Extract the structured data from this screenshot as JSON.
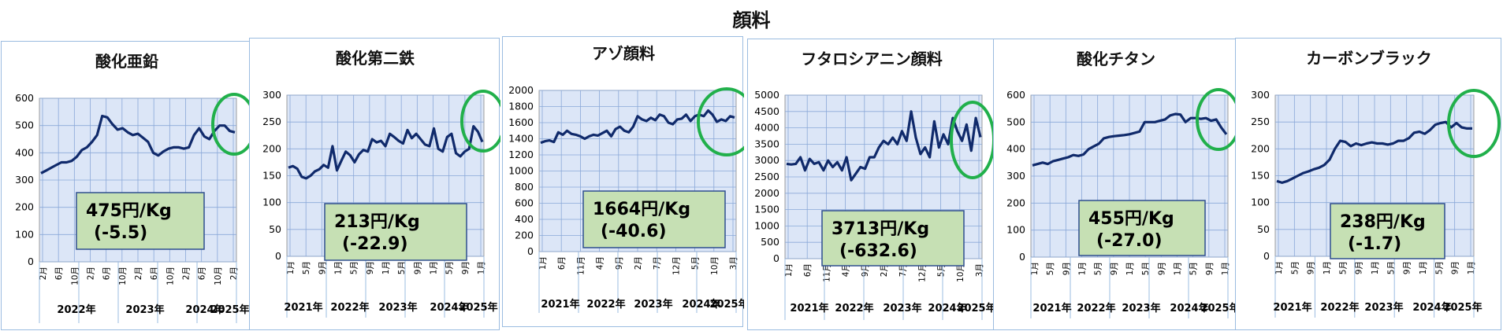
{
  "title": "顔料",
  "chart_data": [
    {
      "type": "line",
      "title": "酸化亜鉛",
      "ylim": [
        0,
        600
      ],
      "yticks": [
        0,
        100,
        200,
        300,
        400,
        500,
        600
      ],
      "xticks": [
        "2月",
        "6月",
        "10月",
        "2月",
        "6月",
        "10月",
        "2月",
        "6月",
        "10月",
        "2月",
        "6月",
        "10月",
        "2月"
      ],
      "years": [
        "2022年",
        "2023年",
        "2024年",
        "2025年"
      ],
      "values": [
        325,
        335,
        345,
        355,
        365,
        365,
        370,
        385,
        410,
        420,
        440,
        465,
        535,
        530,
        505,
        485,
        490,
        475,
        465,
        470,
        455,
        440,
        400,
        390,
        405,
        415,
        420,
        420,
        415,
        420,
        465,
        490,
        460,
        450,
        480,
        500,
        500,
        480,
        475
      ],
      "annotation": {
        "price": "475円/Kg",
        "change": "(-5.5)"
      },
      "line_color": "#102a6b",
      "circle_color": "#21b04b"
    },
    {
      "type": "line",
      "title": "酸化第二鉄",
      "ylim": [
        0,
        300
      ],
      "yticks": [
        0,
        50,
        100,
        150,
        200,
        250,
        300
      ],
      "xticks": [
        "1月",
        "5月",
        "9月",
        "1月",
        "5月",
        "9月",
        "1月",
        "5月",
        "9月",
        "1月",
        "5月",
        "9月",
        "1月"
      ],
      "years": [
        "2021年",
        "2022年",
        "2023年",
        "2024年",
        "2025年"
      ],
      "values": [
        165,
        168,
        163,
        148,
        145,
        150,
        158,
        162,
        170,
        165,
        205,
        160,
        178,
        195,
        188,
        175,
        190,
        198,
        195,
        218,
        212,
        215,
        205,
        228,
        222,
        215,
        210,
        235,
        220,
        228,
        218,
        208,
        205,
        238,
        200,
        195,
        222,
        228,
        192,
        186,
        195,
        200,
        242,
        232,
        213
      ],
      "annotation": {
        "price": "213円/Kg",
        "change": "(-22.9)"
      },
      "line_color": "#102a6b",
      "circle_color": "#21b04b"
    },
    {
      "type": "line",
      "title": "アゾ顔料",
      "ylim": [
        0,
        2000
      ],
      "yticks": [
        0,
        200,
        400,
        600,
        800,
        1000,
        1200,
        1400,
        1600,
        1800,
        2000
      ],
      "xticks": [
        "1月",
        "6月",
        "11月",
        "4月",
        "9月",
        "2月",
        "7月",
        "12月",
        "5月",
        "10月",
        "3月"
      ],
      "years": [
        "2021年",
        "2022年",
        "2023年",
        "2024年",
        "2025年"
      ],
      "values": [
        1350,
        1370,
        1380,
        1360,
        1480,
        1450,
        1500,
        1460,
        1450,
        1430,
        1400,
        1430,
        1450,
        1440,
        1470,
        1500,
        1430,
        1520,
        1550,
        1500,
        1480,
        1550,
        1680,
        1640,
        1620,
        1660,
        1630,
        1700,
        1680,
        1600,
        1580,
        1640,
        1650,
        1700,
        1620,
        1680,
        1700,
        1680,
        1750,
        1700,
        1610,
        1640,
        1620,
        1680,
        1664
      ],
      "annotation": {
        "price": "1664円/Kg",
        "change": "(-40.6)"
      },
      "line_color": "#102a6b",
      "circle_color": "#21b04b"
    },
    {
      "type": "line",
      "title": "フタロシアニン顔料",
      "ylim": [
        0,
        5000
      ],
      "yticks": [
        0,
        500,
        1000,
        1500,
        2000,
        2500,
        3000,
        3500,
        4000,
        4500,
        5000
      ],
      "xticks": [
        "1月",
        "6月",
        "11月",
        "4月",
        "9月",
        "2月",
        "7月",
        "12月",
        "5月",
        "10月",
        "3月"
      ],
      "years": [
        "2021年",
        "2022年",
        "2023年",
        "2024年",
        "2025年"
      ],
      "values": [
        2900,
        2880,
        2900,
        3100,
        2700,
        3050,
        2900,
        2950,
        2700,
        3000,
        2800,
        2950,
        2700,
        3100,
        2400,
        2600,
        2800,
        2750,
        3100,
        3100,
        3400,
        3600,
        3500,
        3700,
        3500,
        3900,
        3600,
        4500,
        3700,
        3200,
        3400,
        3100,
        4200,
        3400,
        3800,
        3500,
        4300,
        3900,
        3600,
        4100,
        3300,
        4300,
        3713
      ],
      "annotation": {
        "price": "3713円/Kg",
        "change": "(-632.6)"
      },
      "line_color": "#102a6b",
      "circle_color": "#21b04b"
    },
    {
      "type": "line",
      "title": "酸化チタン",
      "ylim": [
        0,
        600
      ],
      "yticks": [
        0,
        100,
        200,
        300,
        400,
        500,
        600
      ],
      "xticks": [
        "1月",
        "5月",
        "9月",
        "1月",
        "5月",
        "9月",
        "1月",
        "5月",
        "9月",
        "1月",
        "5月",
        "9月",
        "1月"
      ],
      "years": [
        "2021年",
        "2022年",
        "2023年",
        "2024年",
        "2025年"
      ],
      "values": [
        340,
        345,
        350,
        345,
        355,
        360,
        365,
        370,
        378,
        375,
        380,
        400,
        410,
        420,
        440,
        445,
        448,
        450,
        452,
        455,
        460,
        465,
        500,
        500,
        500,
        505,
        510,
        525,
        530,
        528,
        500,
        515,
        515,
        512,
        515,
        505,
        510,
        480,
        455
      ],
      "annotation": {
        "price": "455円/Kg",
        "change": "(-27.0)"
      },
      "line_color": "#102a6b",
      "circle_color": "#21b04b"
    },
    {
      "type": "line",
      "title": "カーボンブラック",
      "ylim": [
        0,
        300
      ],
      "yticks": [
        0,
        50,
        100,
        150,
        200,
        250,
        300
      ],
      "xticks": [
        "1月",
        "5月",
        "9月",
        "1月",
        "5月",
        "9月",
        "1月",
        "5月",
        "9月",
        "1月",
        "5月",
        "9月",
        "1月"
      ],
      "years": [
        "2021年",
        "2022年",
        "2023年",
        "2024年",
        "2025年"
      ],
      "values": [
        140,
        137,
        140,
        145,
        150,
        155,
        158,
        162,
        165,
        170,
        180,
        200,
        215,
        213,
        205,
        210,
        207,
        210,
        212,
        210,
        210,
        208,
        210,
        215,
        215,
        220,
        230,
        232,
        228,
        235,
        245,
        248,
        250,
        240,
        248,
        240,
        238,
        238
      ],
      "annotation": {
        "price": "238円/Kg",
        "change": "(-1.7)"
      },
      "line_color": "#102a6b",
      "circle_color": "#21b04b"
    }
  ]
}
